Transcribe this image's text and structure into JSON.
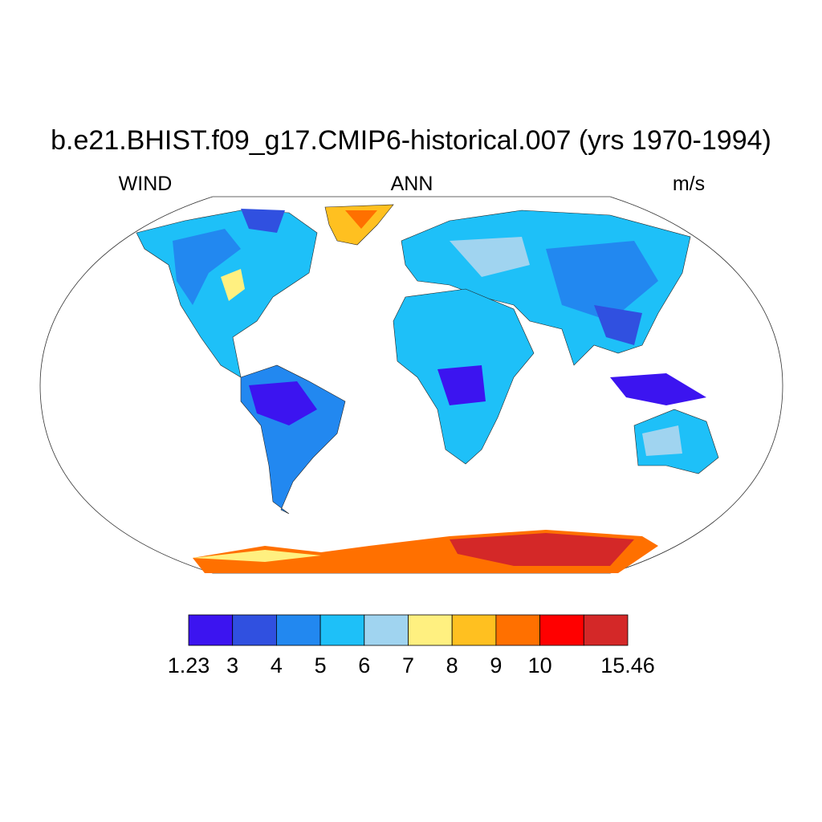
{
  "header": {
    "title": "b.e21.BHIST.f09_g17.CMIP6-historical.007 (yrs 1970-1994)",
    "left": "WIND",
    "center": "ANN",
    "right": "m/s"
  },
  "colorbar": {
    "colors": [
      "#3c14f0",
      "#3050e0",
      "#2288f0",
      "#1ec0f8",
      "#a0d4f0",
      "#fff080",
      "#ffc020",
      "#ff7000",
      "#ff0000",
      "#d42828"
    ],
    "labels": [
      "1.23",
      "3",
      "4",
      "5",
      "6",
      "7",
      "8",
      "9",
      "10",
      null,
      "15.46"
    ]
  }
}
